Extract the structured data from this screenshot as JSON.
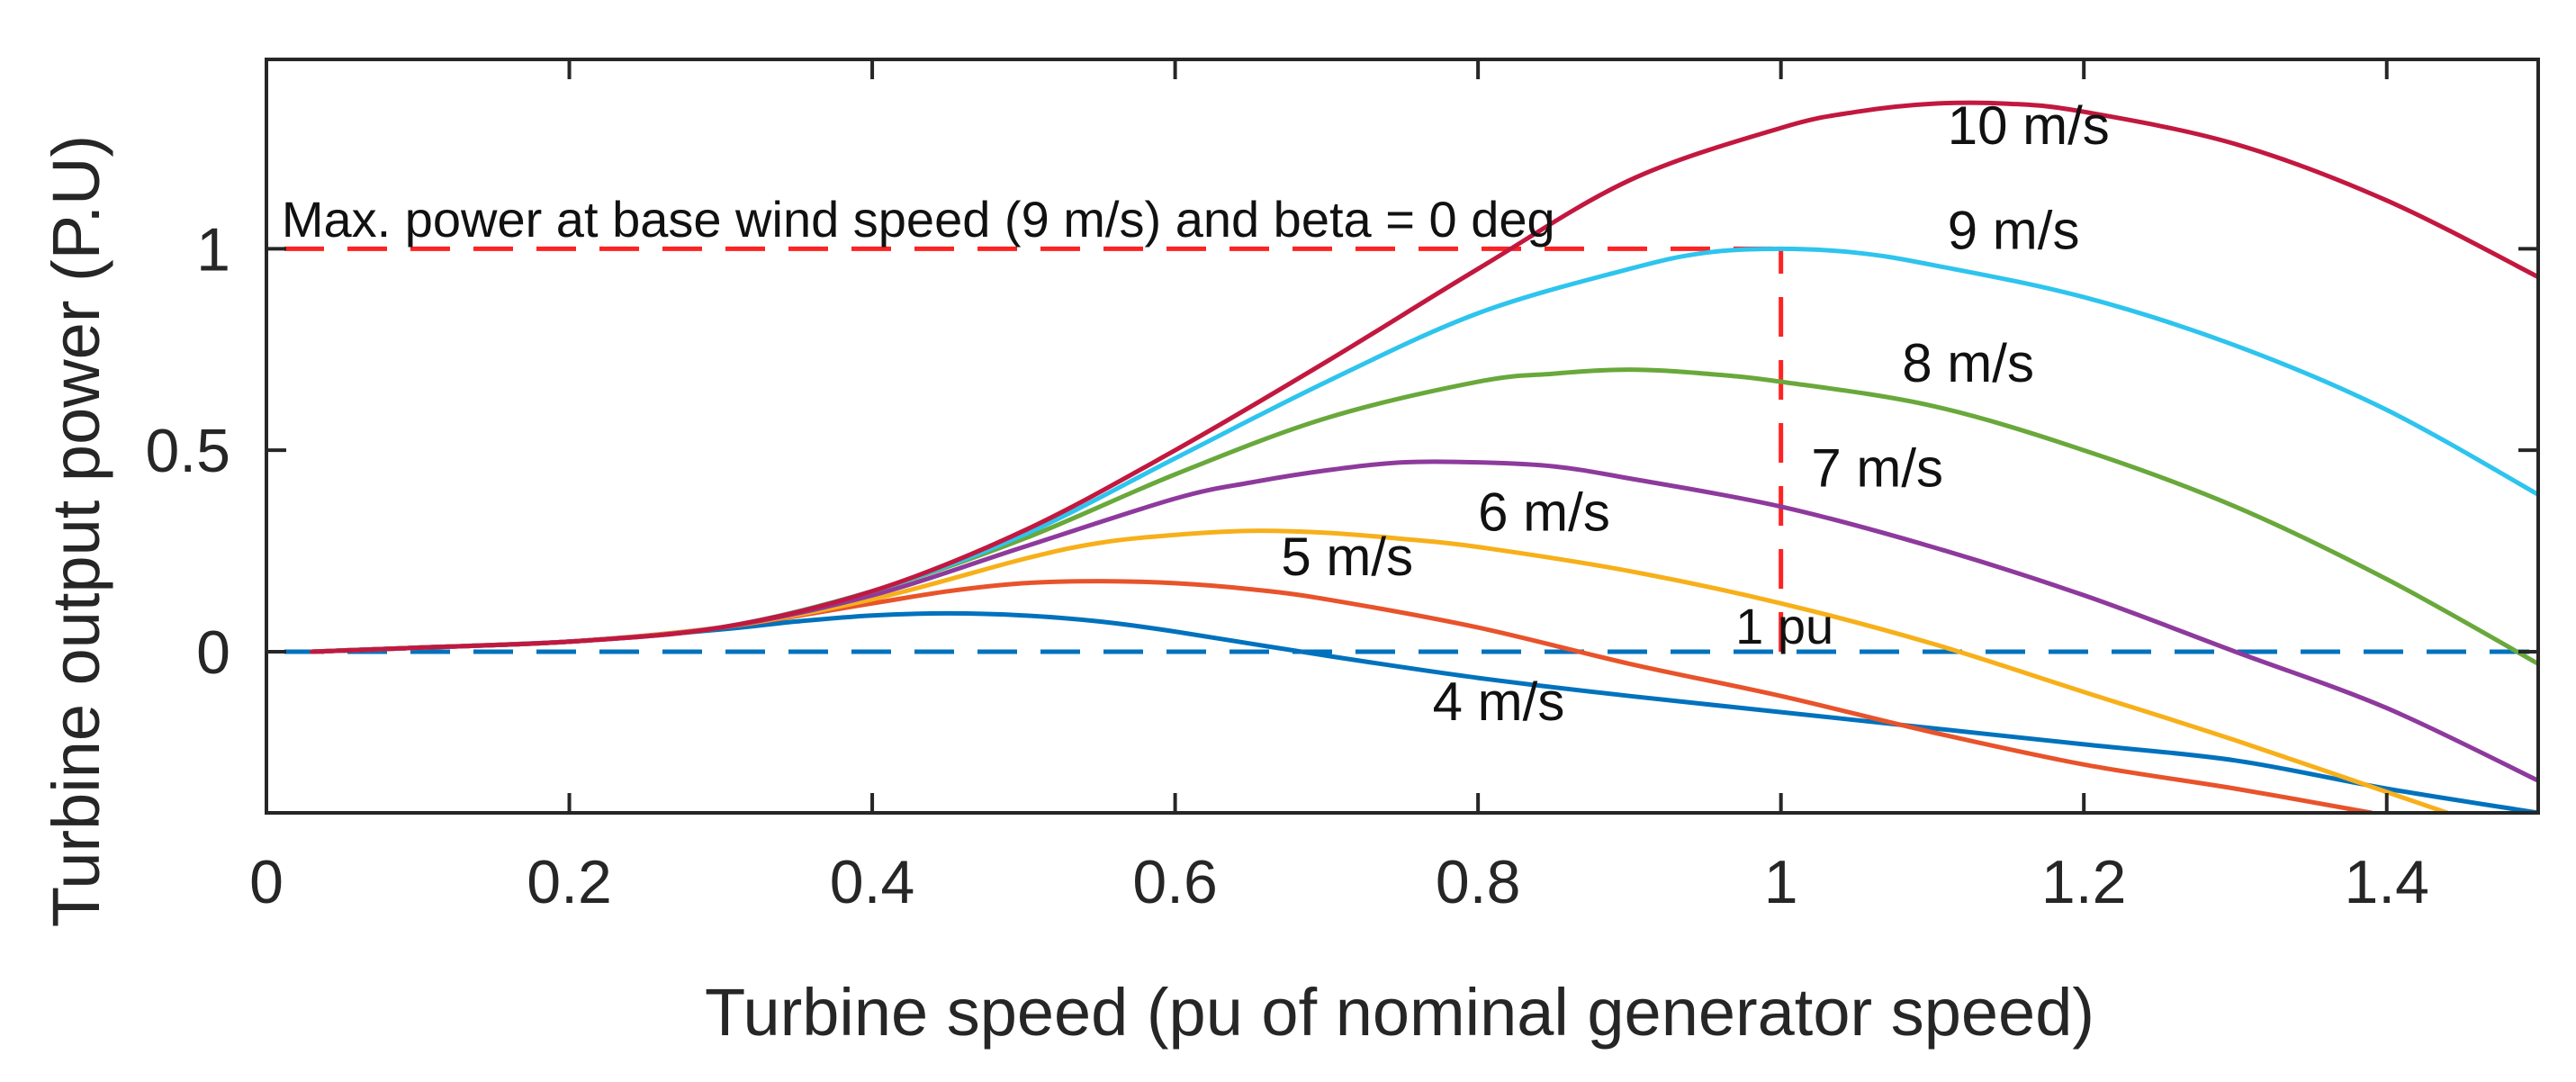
{
  "chart_data": {
    "type": "line",
    "title": "",
    "xlabel": "Turbine speed (pu of nominal generator speed)",
    "ylabel": "Turbine output power (P.U)",
    "xlim": [
      0,
      1.5
    ],
    "ylim": [
      -0.4,
      1.47
    ],
    "xticks": [
      0,
      0.2,
      0.4,
      0.6,
      0.8,
      1,
      1.2,
      1.4
    ],
    "xtick_labels": [
      "0",
      "0.2",
      "0.4",
      "0.6",
      "0.8",
      "1",
      "1.2",
      "1.4"
    ],
    "yticks": [
      0,
      0.5,
      1
    ],
    "ytick_labels": [
      "0",
      "0.5",
      "1"
    ],
    "grid": false,
    "series": [
      {
        "name": "4 m/s",
        "color": "#0072BD",
        "x": [
          0.03,
          0.1,
          0.2,
          0.3,
          0.35,
          0.4,
          0.45,
          0.5,
          0.55,
          0.6,
          0.7,
          0.8,
          0.9,
          1.0,
          1.1,
          1.2,
          1.3,
          1.4,
          1.5
        ],
        "y": [
          0.0,
          0.01,
          0.025,
          0.055,
          0.075,
          0.09,
          0.095,
          0.09,
          0.075,
          0.05,
          -0.01,
          -0.065,
          -0.11,
          -0.15,
          -0.19,
          -0.23,
          -0.27,
          -0.34,
          -0.4
        ]
      },
      {
        "name": "5 m/s",
        "color": "#E8532B",
        "x": [
          0.03,
          0.1,
          0.2,
          0.3,
          0.4,
          0.45,
          0.5,
          0.55,
          0.6,
          0.65,
          0.7,
          0.8,
          0.9,
          1.0,
          1.1,
          1.2,
          1.3,
          1.39
        ],
        "y": [
          0.0,
          0.01,
          0.025,
          0.06,
          0.12,
          0.15,
          0.17,
          0.175,
          0.17,
          0.155,
          0.13,
          0.06,
          -0.03,
          -0.11,
          -0.2,
          -0.28,
          -0.34,
          -0.4
        ]
      },
      {
        "name": "6 m/s",
        "color": "#F7B01A",
        "x": [
          0.03,
          0.1,
          0.2,
          0.3,
          0.4,
          0.5,
          0.55,
          0.6,
          0.65,
          0.7,
          0.75,
          0.8,
          0.9,
          1.0,
          1.1,
          1.2,
          1.3,
          1.44
        ],
        "y": [
          0.0,
          0.01,
          0.025,
          0.06,
          0.13,
          0.23,
          0.27,
          0.29,
          0.3,
          0.295,
          0.28,
          0.26,
          0.2,
          0.12,
          0.02,
          -0.1,
          -0.22,
          -0.4
        ]
      },
      {
        "name": "7 m/s",
        "color": "#8E3A9D",
        "x": [
          0.03,
          0.1,
          0.2,
          0.3,
          0.4,
          0.5,
          0.6,
          0.65,
          0.7,
          0.75,
          0.8,
          0.85,
          0.9,
          1.0,
          1.1,
          1.2,
          1.3,
          1.4,
          1.5
        ],
        "y": [
          0.0,
          0.01,
          0.025,
          0.06,
          0.14,
          0.26,
          0.38,
          0.42,
          0.45,
          0.47,
          0.47,
          0.46,
          0.43,
          0.36,
          0.26,
          0.14,
          0.0,
          -0.14,
          -0.32
        ]
      },
      {
        "name": "8 m/s",
        "color": "#69A83B",
        "x": [
          0.03,
          0.1,
          0.2,
          0.3,
          0.4,
          0.5,
          0.6,
          0.7,
          0.8,
          0.85,
          0.9,
          0.95,
          1.0,
          1.1,
          1.2,
          1.3,
          1.4,
          1.5
        ],
        "y": [
          0.0,
          0.01,
          0.025,
          0.06,
          0.15,
          0.28,
          0.44,
          0.58,
          0.67,
          0.69,
          0.7,
          0.69,
          0.67,
          0.61,
          0.5,
          0.36,
          0.18,
          -0.03
        ]
      },
      {
        "name": "9 m/s",
        "color": "#2EC4EE",
        "x": [
          0.03,
          0.1,
          0.2,
          0.3,
          0.4,
          0.5,
          0.6,
          0.7,
          0.8,
          0.9,
          0.95,
          1.0,
          1.05,
          1.1,
          1.2,
          1.3,
          1.4,
          1.5
        ],
        "y": [
          0.0,
          0.01,
          0.025,
          0.06,
          0.15,
          0.29,
          0.48,
          0.67,
          0.84,
          0.95,
          0.99,
          1.0,
          0.99,
          0.96,
          0.88,
          0.76,
          0.6,
          0.39
        ]
      },
      {
        "name": "10 m/s",
        "color": "#C2183F",
        "x": [
          0.03,
          0.1,
          0.2,
          0.3,
          0.4,
          0.5,
          0.6,
          0.7,
          0.8,
          0.9,
          1.0,
          1.05,
          1.1,
          1.15,
          1.2,
          1.3,
          1.4,
          1.5
        ],
        "y": [
          0.0,
          0.01,
          0.025,
          0.06,
          0.15,
          0.3,
          0.5,
          0.72,
          0.95,
          1.17,
          1.3,
          1.34,
          1.36,
          1.36,
          1.34,
          1.26,
          1.12,
          0.93
        ]
      }
    ],
    "reference_lines": [
      {
        "name": "max-power-line",
        "orientation": "horizontal",
        "value": 1,
        "x_range": [
          0,
          1
        ],
        "color": "#FF2222",
        "style": "dashed"
      },
      {
        "name": "one-pu-line",
        "orientation": "vertical",
        "value": 1,
        "y_range": [
          0,
          1
        ],
        "color": "#FF2222",
        "style": "dashed"
      },
      {
        "name": "zero-line",
        "orientation": "horizontal",
        "value": 0,
        "x_range": [
          0,
          1.5
        ],
        "color": "#0072BD",
        "style": "dashed"
      }
    ],
    "curve_labels": [
      {
        "text": "10 m/s",
        "x": 1.11,
        "y": 1.26
      },
      {
        "text": "9 m/s",
        "x": 1.11,
        "y": 1.0
      },
      {
        "text": "8 m/s",
        "x": 1.08,
        "y": 0.67
      },
      {
        "text": "7 m/s",
        "x": 1.02,
        "y": 0.41
      },
      {
        "text": "6 m/s",
        "x": 0.8,
        "y": 0.3
      },
      {
        "text": "5 m/s",
        "x": 0.67,
        "y": 0.19
      },
      {
        "text": "4 m/s",
        "x": 0.77,
        "y": -0.17
      }
    ],
    "annotations": [
      {
        "text": "Max. power at base wind speed (9 m/s) and beta = 0 deg",
        "x": 0.01,
        "y": 1.03
      },
      {
        "text": "1 pu",
        "x": 0.97,
        "y": 0.02
      }
    ]
  }
}
